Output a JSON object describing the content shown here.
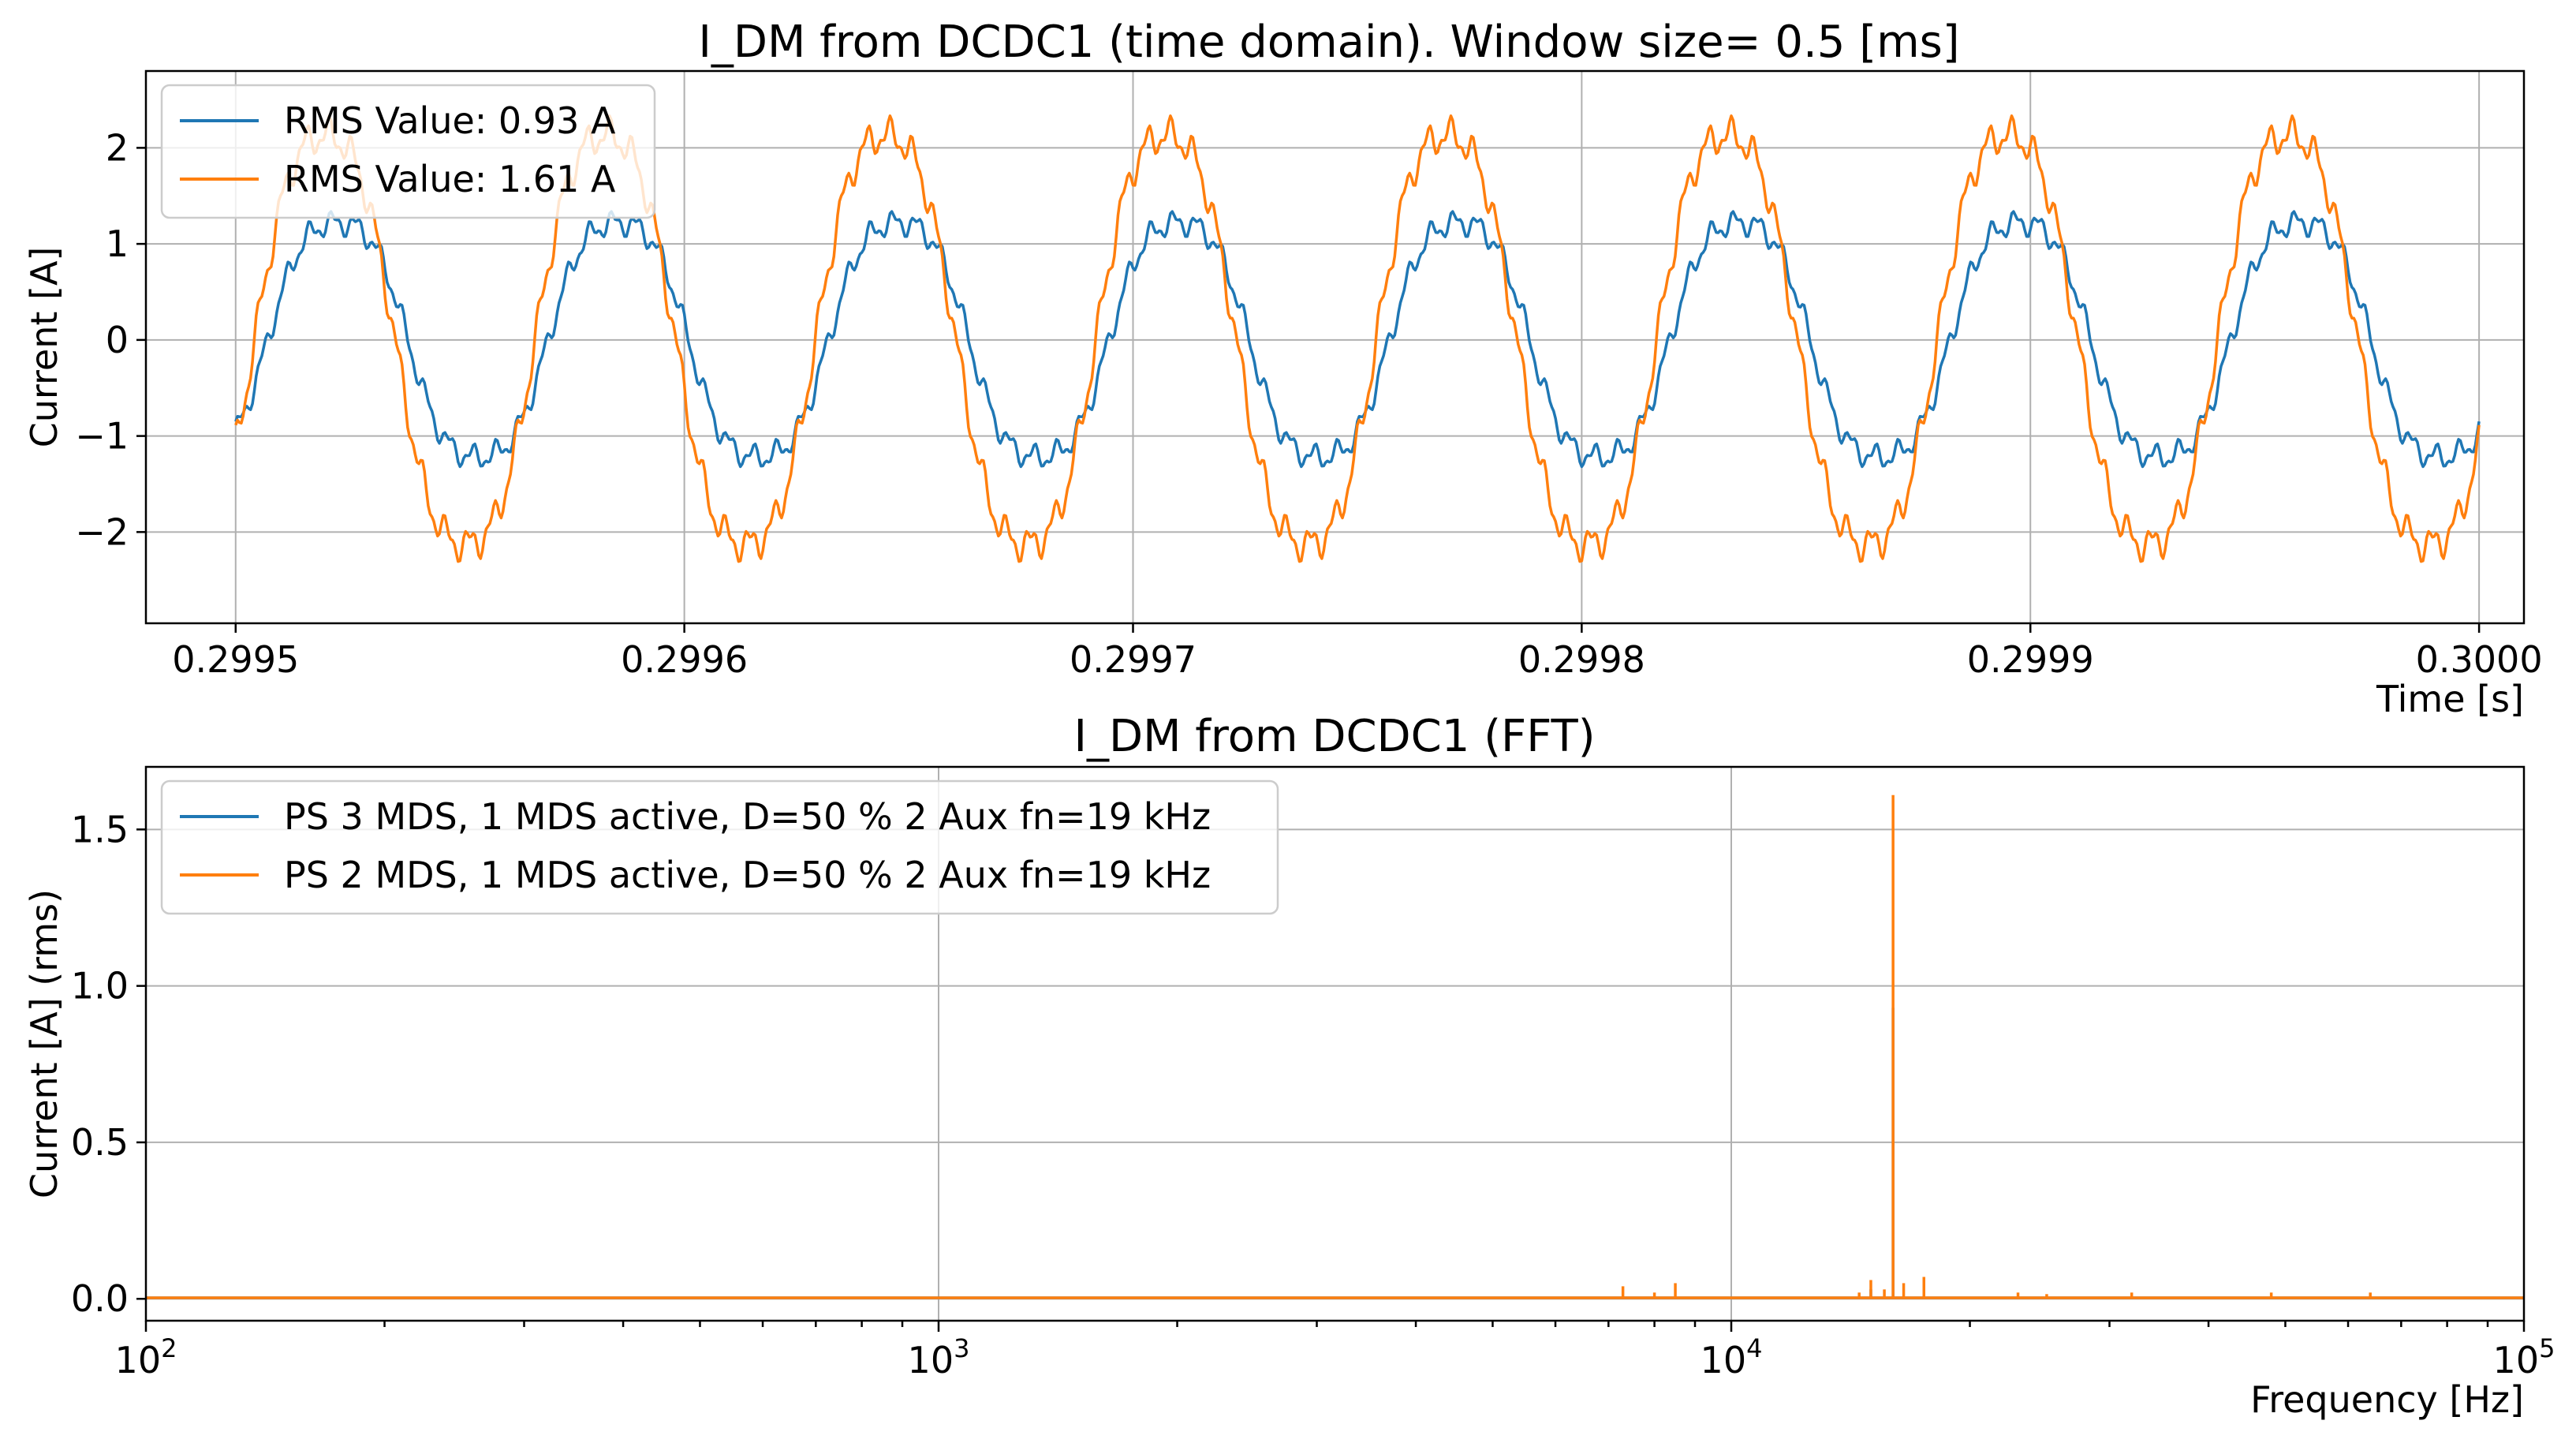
{
  "colors": {
    "series1": "#1f77b4",
    "series2": "#ff7f0e",
    "grid": "#b0b0b0"
  },
  "chart_data": [
    {
      "type": "line",
      "title": "I_DM from DCDC1 (time domain). Window size= 0.5 [ms]",
      "xlabel": "Time [s]",
      "ylabel": "Current [A]",
      "xlim": [
        0.29948,
        0.30001
      ],
      "ylim": [
        -2.95,
        2.8
      ],
      "xticks": [
        0.2995,
        0.2996,
        0.2997,
        0.2998,
        0.2999,
        0.3
      ],
      "xtick_labels": [
        "0.2995",
        "0.2996",
        "0.2997",
        "0.2998",
        "0.2999",
        "0.3000"
      ],
      "yticks": [
        2,
        1,
        0,
        -1,
        -2
      ],
      "ytick_labels": [
        "2",
        "1",
        "0",
        "−1",
        "−2"
      ],
      "grid": true,
      "legend_position": "upper-left",
      "x_range": [
        0.2995,
        0.3
      ],
      "period_s": 6.25e-05,
      "series": [
        {
          "name": "RMS Value: 0.93 A",
          "color": "#1f77b4",
          "amplitude": 1.32,
          "harmonic3": 0.1,
          "ripple": 0.1,
          "start_value": -0.87,
          "end_value": -0.82,
          "peak_value": 1.5
        },
        {
          "name": "RMS Value: 1.61 A",
          "color": "#ff7f0e",
          "amplitude": 2.28,
          "harmonic3": 0.15,
          "ripple": 0.14,
          "start_value": -0.95,
          "end_value": -0.72,
          "peak_value": 2.55
        }
      ]
    },
    {
      "type": "line",
      "title": "I_DM from DCDC1 (FFT)",
      "xlabel": "Frequency [Hz]",
      "ylabel": "Current [A] (rms)",
      "xscale": "log",
      "xlim": [
        100,
        100000
      ],
      "ylim": [
        -0.07,
        1.7
      ],
      "xticks": [
        100,
        1000,
        10000,
        100000
      ],
      "xtick_labels": [
        {
          "base": "10",
          "exp": "2"
        },
        {
          "base": "10",
          "exp": "3"
        },
        {
          "base": "10",
          "exp": "4"
        },
        {
          "base": "10",
          "exp": "5"
        }
      ],
      "yticks": [
        0.0,
        0.5,
        1.0,
        1.5
      ],
      "ytick_labels": [
        "0.0",
        "0.5",
        "1.0",
        "1.5"
      ],
      "grid": true,
      "legend_position": "upper-left",
      "series": [
        {
          "name": "PS 3 MDS, 1 MDS active, D=50 % 2 Aux fn=19 kHz",
          "color": "#1f77b4",
          "peaks": [
            [
              16000,
              0.93
            ],
            [
              17500,
              0.04
            ],
            [
              15000,
              0.03
            ]
          ]
        },
        {
          "name": "PS 2 MDS, 1 MDS active, D=50 % 2 Aux fn=19 kHz",
          "color": "#ff7f0e",
          "peaks": [
            [
              7300,
              0.04
            ],
            [
              8000,
              0.02
            ],
            [
              8500,
              0.05
            ],
            [
              14500,
              0.02
            ],
            [
              15000,
              0.06
            ],
            [
              15600,
              0.03
            ],
            [
              16000,
              1.61
            ],
            [
              16500,
              0.05
            ],
            [
              17500,
              0.07
            ],
            [
              23000,
              0.02
            ],
            [
              25000,
              0.015
            ],
            [
              32000,
              0.02
            ],
            [
              48000,
              0.02
            ],
            [
              64000,
              0.02
            ]
          ]
        }
      ]
    }
  ]
}
